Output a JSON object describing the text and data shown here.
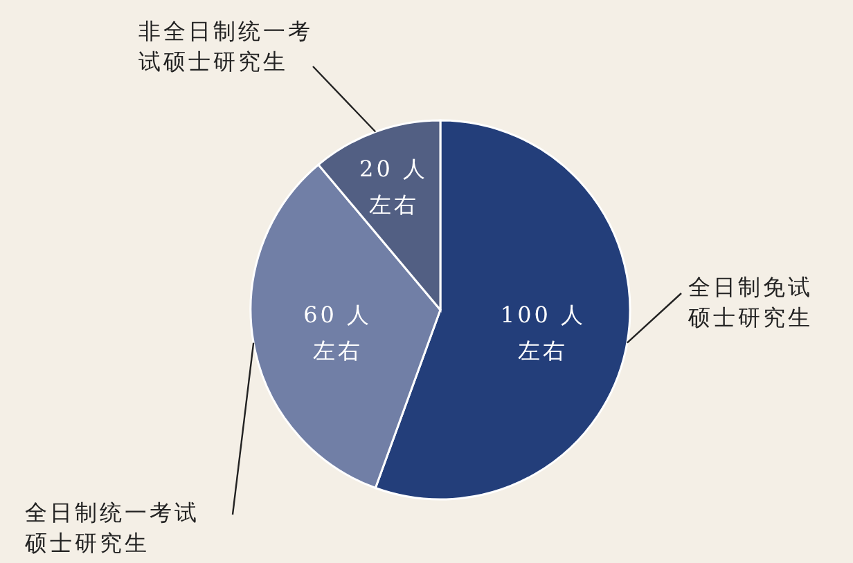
{
  "chart_data": {
    "type": "pie",
    "categories": [
      "全日制免试硕士研究生",
      "全日制统一考试硕士研究生",
      "非全日制统一考试硕士研究生"
    ],
    "values": [
      100,
      60,
      20
    ],
    "colors": [
      "#233e7a",
      "#717fa6",
      "#525f83"
    ],
    "value_labels": [
      "100 人左右",
      "60 人左右",
      "20 人左右"
    ]
  }
}
